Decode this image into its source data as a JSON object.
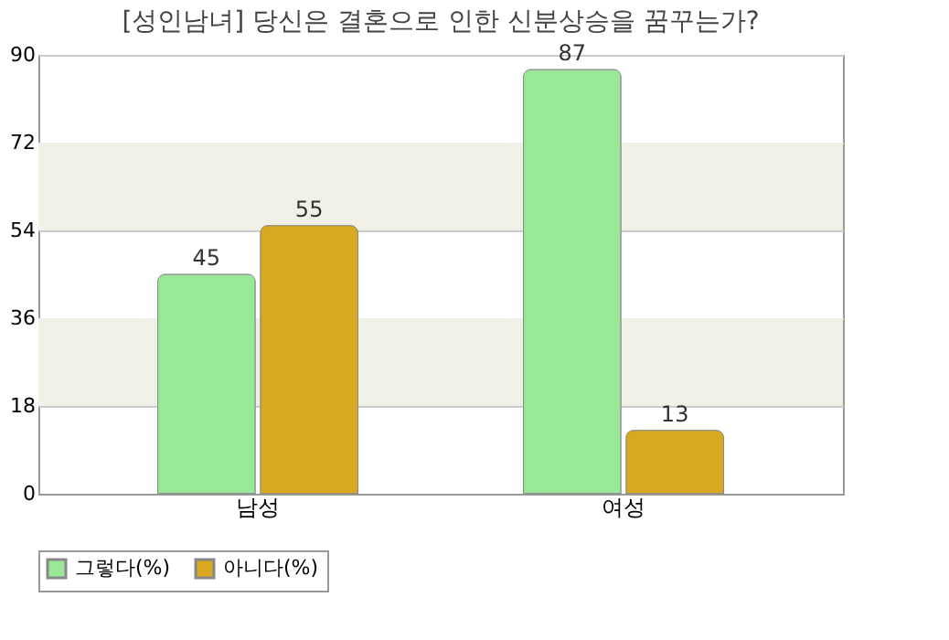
{
  "chart_data": {
    "type": "bar",
    "title": "[성인남녀] 당신은 결혼으로 인한 신분상승을 꿈꾸는가?",
    "categories": [
      "남성",
      "여성"
    ],
    "series": [
      {
        "name": "그렇다(%)",
        "color": "#98e898",
        "values": [
          45,
          87
        ]
      },
      {
        "name": "아니다(%)",
        "color": "#d8a820",
        "values": [
          55,
          13
        ]
      }
    ],
    "ylim": [
      0,
      90
    ],
    "yticks": [
      0,
      18,
      36,
      54,
      72,
      90
    ],
    "grid": "y",
    "legend": "bottom",
    "data_labels": true,
    "bands": [
      {
        "axis": "y",
        "from": 18,
        "to": 36,
        "color": "#f0f0e6"
      },
      {
        "axis": "y",
        "from": 54,
        "to": 72,
        "color": "#f0f0e6"
      }
    ]
  }
}
